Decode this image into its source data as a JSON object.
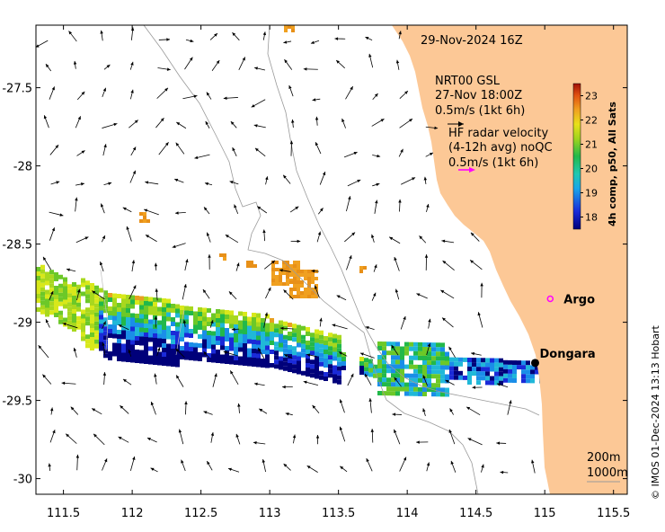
{
  "map": {
    "date_label": "29-Nov-2024 16Z",
    "model_label": "NRT00 GSL",
    "model_time": "27-Nov 18:00Z",
    "model_scale": "0.5m/s (1kt 6h)",
    "hf_title": "HF radar velocity",
    "hf_avg": "(4-12h avg) noQC",
    "hf_scale": "0.5m/s (1kt 6h)",
    "argo_label": "Argo",
    "city_label": "Dongara",
    "contour_200": "200m",
    "contour_1000": "1000m",
    "credit": "© IMOS 01-Dec-2024 13:13 Hobart",
    "colors": {
      "land": "#fcc896",
      "arrow": "#000000",
      "hf_arrow": "#ff00ff",
      "argo": "#ff00ff",
      "city": "#000000"
    }
  },
  "chart_data": {
    "type": "heatmap",
    "xlim": [
      111.3,
      115.6
    ],
    "ylim": [
      -30.1,
      -27.1
    ],
    "x_ticks": [
      "111.5",
      "112",
      "112.5",
      "113",
      "113.5",
      "114",
      "114.5",
      "115",
      "115.5"
    ],
    "x_tick_values": [
      111.5,
      112,
      112.5,
      113,
      113.5,
      114,
      114.5,
      115,
      115.5
    ],
    "y_ticks": [
      "-27.5",
      "-28",
      "-28.5",
      "-29",
      "-29.5",
      "-30"
    ],
    "y_tick_values": [
      -27.5,
      -28,
      -28.5,
      -29,
      -29.5,
      -30
    ],
    "colorbar": {
      "title": "4h comp, p50, All Sats",
      "ticks": [
        "18",
        "19",
        "20",
        "21",
        "22",
        "23"
      ],
      "tick_values": [
        18,
        19,
        20,
        21,
        22,
        23
      ],
      "range": [
        17.5,
        23.5
      ]
    },
    "argo": {
      "lon": 115.04,
      "lat": -28.85
    },
    "dongara": {
      "lon": 114.93,
      "lat": -29.26
    }
  }
}
